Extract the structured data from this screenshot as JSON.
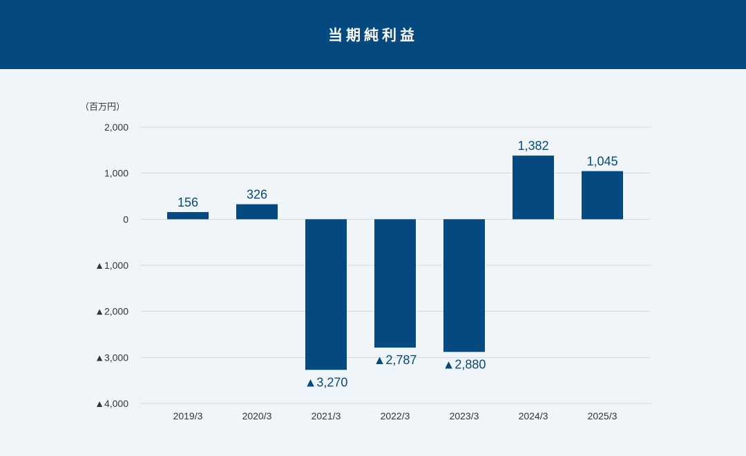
{
  "header": {
    "title": "当期純利益"
  },
  "chart_data": {
    "type": "bar",
    "title": "当期純利益",
    "unit": "（百万円）",
    "categories": [
      "2019/3",
      "2020/3",
      "2021/3",
      "2022/3",
      "2023/3",
      "2024/3",
      "2025/3"
    ],
    "values": [
      156,
      326,
      -3270,
      -2787,
      -2880,
      1382,
      1045
    ],
    "data_labels": [
      "156",
      "326",
      "▲3,270",
      "▲2,787",
      "▲2,880",
      "1,382",
      "1,045"
    ],
    "y_ticks": [
      {
        "value": 2000,
        "label": "2,000"
      },
      {
        "value": 1000,
        "label": "1,000"
      },
      {
        "value": 0,
        "label": "0"
      },
      {
        "value": -1000,
        "label": "▲1,000"
      },
      {
        "value": -2000,
        "label": "▲2,000"
      },
      {
        "value": -3000,
        "label": "▲3,000"
      },
      {
        "value": -4000,
        "label": "▲4,000"
      }
    ],
    "ylim": [
      -4000,
      2000
    ],
    "grid": true,
    "bar_color": "#044a80",
    "grid_color": "#d3dbe2"
  }
}
